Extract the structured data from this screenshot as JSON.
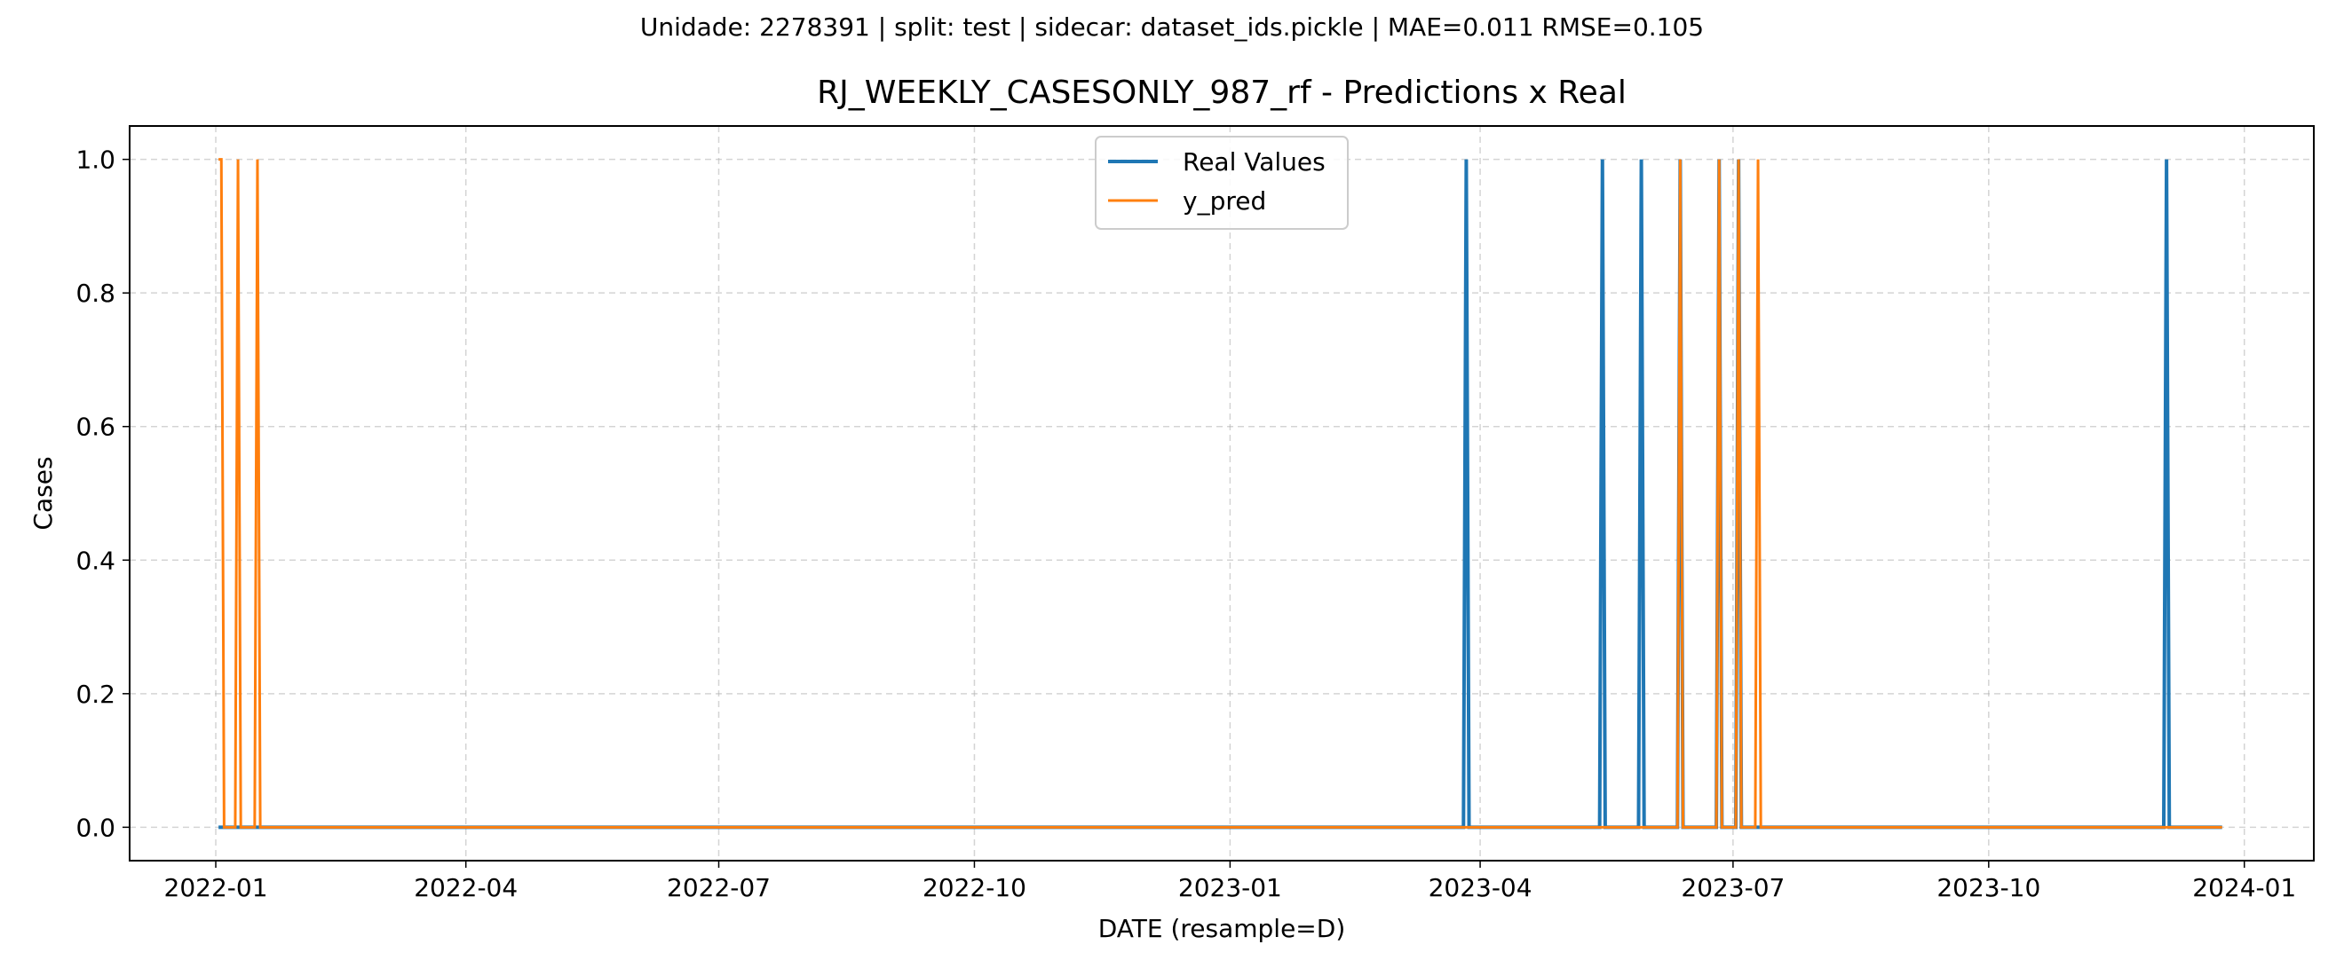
{
  "chart_data": {
    "type": "line",
    "suptitle": "Unidade: 2278391 | split: test | sidecar: dataset_ids.pickle | MAE=0.011  RMSE=0.105",
    "title": "RJ_WEEKLY_CASESONLY_987_rf - Predictions x Real",
    "xlabel": "DATE (resample=D)",
    "ylabel": "Cases",
    "xlim": [
      "2021-12-01",
      "2024-01-26"
    ],
    "ylim": [
      -0.05,
      1.05
    ],
    "x_ticks": [
      "2022-01",
      "2022-04",
      "2022-07",
      "2022-10",
      "2023-01",
      "2023-04",
      "2023-07",
      "2023-10",
      "2024-01"
    ],
    "y_ticks": [
      "0.0",
      "0.2",
      "0.4",
      "0.6",
      "0.8",
      "1.0"
    ],
    "grid": true,
    "legend_position": "upper center",
    "series": [
      {
        "name": "Real Values",
        "color": "#1f77b4",
        "x": [
          "2022-01-02",
          "2023-03-26",
          "2023-03-27",
          "2023-03-28",
          "2023-05-14",
          "2023-05-15",
          "2023-05-16",
          "2023-05-28",
          "2023-05-29",
          "2023-05-30",
          "2023-06-11",
          "2023-06-12",
          "2023-06-13",
          "2023-06-25",
          "2023-06-26",
          "2023-06-27",
          "2023-07-02",
          "2023-07-03",
          "2023-07-04",
          "2023-12-03",
          "2023-12-04",
          "2023-12-05",
          "2023-12-24"
        ],
        "values": [
          0,
          0,
          1,
          0,
          0,
          1,
          0,
          0,
          1,
          0,
          0,
          1,
          0,
          0,
          1,
          0,
          0,
          1,
          0,
          0,
          1,
          0,
          0
        ]
      },
      {
        "name": "y_pred",
        "color": "#ff7f0e",
        "x": [
          "2022-01-02",
          "2022-01-03",
          "2022-01-04",
          "2022-01-08",
          "2022-01-09",
          "2022-01-10",
          "2022-01-15",
          "2022-01-16",
          "2022-01-17",
          "2023-06-11",
          "2023-06-12",
          "2023-06-13",
          "2023-06-25",
          "2023-06-26",
          "2023-06-27",
          "2023-07-02",
          "2023-07-03",
          "2023-07-04",
          "2023-07-09",
          "2023-07-10",
          "2023-07-11",
          "2023-12-24"
        ],
        "values": [
          1,
          1,
          0,
          0,
          1,
          0,
          0,
          1,
          0,
          0,
          1,
          0,
          0,
          1,
          0,
          0,
          1,
          0,
          0,
          1,
          0,
          0
        ]
      }
    ]
  }
}
